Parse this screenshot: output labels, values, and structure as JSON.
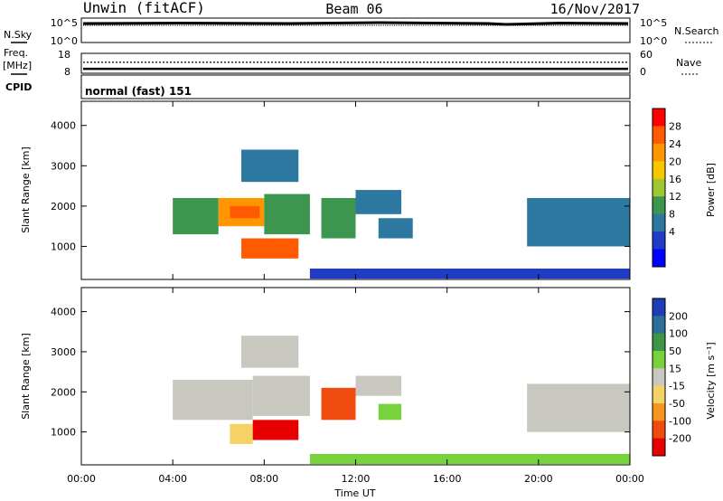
{
  "header": {
    "title": "Unwin (fitACF)",
    "beam": "Beam 06",
    "date": "16/Nov/2017"
  },
  "noise_panel": {
    "left_label": "N.Sky",
    "right_label": "N.Search",
    "ticks_left": [
      "10^5",
      "10^0"
    ],
    "ticks_right": [
      "10^5",
      "10^0"
    ]
  },
  "freq_panel": {
    "label_line1": "Freq.",
    "label_line2": "[MHz]",
    "ticks_left": [
      "18",
      "8"
    ],
    "right_label": "Nave",
    "ticks_right": [
      "60",
      "0"
    ]
  },
  "cpid_panel": {
    "label": "CPID",
    "value": "normal (fast) 151"
  },
  "power_panel": {
    "ylabel": "Slant Range [km]",
    "yticks": [
      "4000",
      "3000",
      "2000",
      "1000"
    ],
    "colorbar_label": "Power [dB]",
    "colorbar_ticks": [
      "28",
      "24",
      "20",
      "16",
      "12",
      "8",
      "4"
    ],
    "colorbar_colors": [
      "#ff0000",
      "#ff5a00",
      "#ff9600",
      "#f5c800",
      "#a0c832",
      "#3c9650",
      "#2d78a0",
      "#1e3cc8",
      "#0000ff"
    ]
  },
  "velocity_panel": {
    "ylabel": "Slant Range [km]",
    "yticks": [
      "4000",
      "3000",
      "2000",
      "1000"
    ],
    "colorbar_label": "Velocity [m s⁻¹]",
    "colorbar_ticks": [
      "200",
      "100",
      "50",
      "15",
      "-15",
      "-50",
      "-100",
      "-200"
    ],
    "colorbar_colors": [
      "#1e3cb4",
      "#2d6e96",
      "#3c9646",
      "#78d23c",
      "#c8c8c0",
      "#f5d264",
      "#f5961e",
      "#f04b0f",
      "#e60000"
    ]
  },
  "xaxis": {
    "label": "Time UT",
    "ticks": [
      "00:00",
      "04:00",
      "08:00",
      "12:00",
      "16:00",
      "20:00",
      "00:00"
    ]
  },
  "chart_data": [
    {
      "type": "heatmap",
      "title": "Power",
      "xlabel": "Time UT",
      "ylabel": "Slant Range [km]",
      "colorbar": "Power [dB]",
      "xlim": [
        0,
        24
      ],
      "ylim": [
        180,
        4600
      ],
      "clim": [
        0,
        32
      ],
      "cells": [
        {
          "t_start": 4.0,
          "t_end": 6.0,
          "r_start": 1300,
          "r_end": 2200,
          "value": 14
        },
        {
          "t_start": 6.0,
          "t_end": 8.0,
          "r_start": 1500,
          "r_end": 2200,
          "value": 22
        },
        {
          "t_start": 6.5,
          "t_end": 7.8,
          "r_start": 1700,
          "r_end": 2000,
          "value": 28
        },
        {
          "t_start": 7.0,
          "t_end": 9.5,
          "r_start": 700,
          "r_end": 1200,
          "value": 26
        },
        {
          "t_start": 8.0,
          "t_end": 10.0,
          "r_start": 1300,
          "r_end": 2300,
          "value": 14
        },
        {
          "t_start": 7.0,
          "t_end": 9.5,
          "r_start": 2600,
          "r_end": 3400,
          "value": 8
        },
        {
          "t_start": 10.5,
          "t_end": 12.0,
          "r_start": 1200,
          "r_end": 2200,
          "value": 12
        },
        {
          "t_start": 12.0,
          "t_end": 14.0,
          "r_start": 1800,
          "r_end": 2400,
          "value": 10
        },
        {
          "t_start": 13.0,
          "t_end": 14.5,
          "r_start": 1200,
          "r_end": 1700,
          "value": 9
        },
        {
          "t_start": 19.5,
          "t_end": 24.0,
          "r_start": 1000,
          "r_end": 2200,
          "value": 10
        },
        {
          "t_start": 10.0,
          "t_end": 24.0,
          "r_start": 200,
          "r_end": 450,
          "value": 5
        }
      ]
    },
    {
      "type": "heatmap",
      "title": "Velocity",
      "xlabel": "Time UT",
      "ylabel": "Slant Range [km]",
      "colorbar": "Velocity [m s⁻¹]",
      "xlim": [
        0,
        24
      ],
      "ylim": [
        180,
        4600
      ],
      "clim": [
        -250,
        250
      ],
      "cells": [
        {
          "t_start": 4.0,
          "t_end": 7.5,
          "r_start": 1300,
          "r_end": 2300,
          "value": 0
        },
        {
          "t_start": 7.5,
          "t_end": 10.0,
          "r_start": 1400,
          "r_end": 2400,
          "value": 0
        },
        {
          "t_start": 7.0,
          "t_end": 9.5,
          "r_start": 2600,
          "r_end": 3400,
          "value": 0
        },
        {
          "t_start": 6.5,
          "t_end": 7.5,
          "r_start": 700,
          "r_end": 1200,
          "value": -30
        },
        {
          "t_start": 7.5,
          "t_end": 9.5,
          "r_start": 800,
          "r_end": 1300,
          "value": -230
        },
        {
          "t_start": 10.5,
          "t_end": 12.0,
          "r_start": 1300,
          "r_end": 2100,
          "value": -180
        },
        {
          "t_start": 12.0,
          "t_end": 14.0,
          "r_start": 1900,
          "r_end": 2400,
          "value": 5
        },
        {
          "t_start": 13.0,
          "t_end": 14.0,
          "r_start": 1300,
          "r_end": 1700,
          "value": 40
        },
        {
          "t_start": 19.5,
          "t_end": 24.0,
          "r_start": 1000,
          "r_end": 2200,
          "value": 0
        },
        {
          "t_start": 10.0,
          "t_end": 24.0,
          "r_start": 200,
          "r_end": 450,
          "value": 30
        }
      ]
    },
    {
      "type": "line",
      "title": "Frequency",
      "xlabel": "Time UT",
      "ylabel": "Freq. [MHz]",
      "xlim": [
        0,
        24
      ],
      "ylim": [
        8,
        18
      ],
      "x": [
        0,
        24
      ],
      "y": [
        10.2,
        10.2
      ]
    },
    {
      "type": "line",
      "title": "Nave",
      "xlabel": "Time UT",
      "ylabel": "Nave",
      "xlim": [
        0,
        24
      ],
      "ylim": [
        0,
        60
      ],
      "x": [
        0,
        24
      ],
      "y": [
        33,
        33
      ]
    }
  ]
}
